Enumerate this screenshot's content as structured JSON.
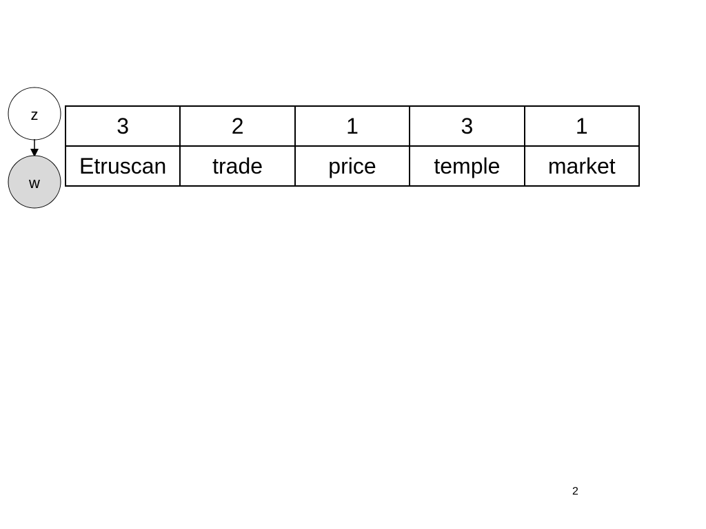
{
  "diagram": {
    "nodes": {
      "latent_label": "z",
      "observed_label": "w"
    },
    "colors": {
      "latent_fill": "#ffffff",
      "observed_fill": "#d9d9d9",
      "stroke": "#000000"
    }
  },
  "table": {
    "topics": [
      "3",
      "2",
      "1",
      "3",
      "1"
    ],
    "words": [
      "Etruscan",
      "trade",
      "price",
      "temple",
      "market"
    ]
  },
  "page_number": "2"
}
